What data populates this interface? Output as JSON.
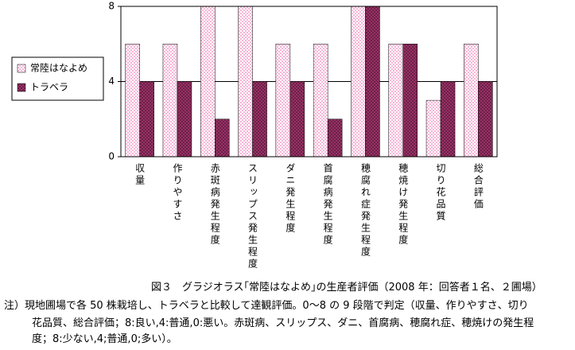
{
  "chart_data": {
    "type": "bar",
    "categories": [
      "収量",
      "作りやすさ",
      "赤斑病発生程度",
      "スリップス発生程度",
      "ダニ発生程度",
      "首腐病発生程度",
      "穂腐れ症発生程度",
      "穂焼け発生程度",
      "切り花品質",
      "総合評価"
    ],
    "series": [
      {
        "name": "常陸はなよめ",
        "color": "#f7b6d8",
        "values": [
          6,
          6,
          8,
          8,
          6,
          6,
          8,
          6,
          3,
          6
        ]
      },
      {
        "name": "トラベラ",
        "color": "#993366",
        "values": [
          4,
          4,
          2,
          4,
          4,
          2,
          8,
          6,
          4,
          4
        ]
      }
    ],
    "ylim": [
      0,
      8
    ],
    "yticks": [
      0,
      4,
      8
    ],
    "grid": true
  },
  "caption": "図３　グラジオラス｢常陸はなよめ｣の生産者評価（2008 年：回答者１名、２圃場）",
  "note": [
    "注）現地圃場で各 50 株栽培し、トラベラと比較して達観評価。0～8 の 9 段階で判定（収量、作りやすさ、切り",
    "花品質、総合評価；8:良い,4:普通,0:悪い。赤斑病、スリップス、ダニ、首腐病、穂腐れ症、穂焼けの発生程",
    "度；8:少ない,4;普通,0;多い）。"
  ]
}
